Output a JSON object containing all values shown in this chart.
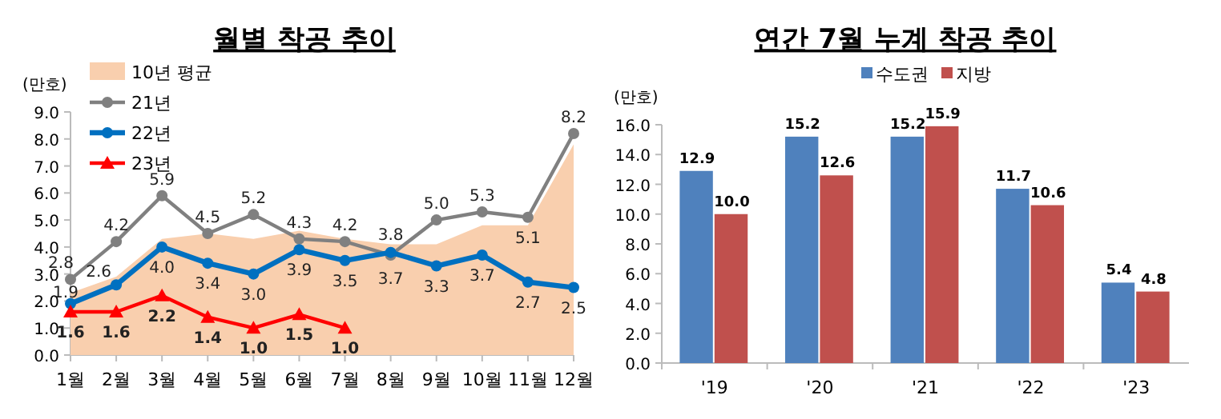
{
  "chart_data": [
    {
      "type": "line",
      "title": "월별 착공 추이",
      "ylabel": "(만호)",
      "categories": [
        "1월",
        "2월",
        "3월",
        "4월",
        "5월",
        "6월",
        "7월",
        "8월",
        "9월",
        "10월",
        "11월",
        "12월"
      ],
      "ylim": [
        0,
        9
      ],
      "yticks": [
        {
          "value": 0,
          "label": "0.0"
        },
        {
          "value": 1,
          "label": "1.0"
        },
        {
          "value": 2,
          "label": "2.0"
        },
        {
          "value": 3,
          "label": "3.0"
        },
        {
          "value": 4,
          "label": "4.0"
        },
        {
          "value": 5,
          "label": "5.0"
        },
        {
          "value": 6,
          "label": "6.0"
        },
        {
          "value": 7,
          "label": "7.0"
        },
        {
          "value": 8,
          "label": "8.0"
        },
        {
          "value": 9,
          "label": "9.0"
        }
      ],
      "legend": "top left",
      "grid": false,
      "series": [
        {
          "name": "10년 평균",
          "type": "area",
          "color": "#f9cfae",
          "values": [
            2.3,
            2.9,
            4.3,
            4.5,
            4.3,
            4.6,
            4.3,
            4.1,
            4.1,
            4.8,
            4.8,
            7.8
          ]
        },
        {
          "name": "21년",
          "color": "#808080",
          "marker": "circle",
          "values": [
            2.8,
            4.2,
            5.9,
            4.5,
            5.2,
            4.3,
            4.2,
            3.7,
            5.0,
            5.3,
            5.1,
            8.2
          ],
          "value_labels": [
            "2.8",
            "4.2",
            "5.9",
            "4.5",
            "5.2",
            "4.3",
            "4.2",
            "3.7",
            "5.0",
            "5.3",
            "5.1",
            "8.2"
          ]
        },
        {
          "name": "22년",
          "color": "#0070c0",
          "marker": "circle",
          "values": [
            1.9,
            2.6,
            4.0,
            3.4,
            3.0,
            3.9,
            3.5,
            3.8,
            3.3,
            3.7,
            2.7,
            2.5
          ],
          "value_labels": [
            "1.9",
            "2.6",
            "4.0",
            "3.4",
            "3.0",
            "3.9",
            "3.5",
            "3.8",
            "3.3",
            "3.7",
            "2.7",
            "2.5"
          ]
        },
        {
          "name": "23년",
          "color": "#ff0000",
          "marker": "triangle",
          "values": [
            1.6,
            1.6,
            2.2,
            1.4,
            1.0,
            1.5,
            1.0,
            null,
            null,
            null,
            null,
            null
          ],
          "value_labels": [
            "1.6",
            "1.6",
            "2.2",
            "1.4",
            "1.0",
            "1.5",
            "1.0",
            null,
            null,
            null,
            null,
            null
          ]
        }
      ]
    },
    {
      "type": "bar",
      "title": "연간 7월 누계 착공 추이",
      "ylabel": "(만호)",
      "categories": [
        "'19",
        "'20",
        "'21",
        "'22",
        "'23"
      ],
      "ylim": [
        0,
        16
      ],
      "yticks": [
        {
          "value": 0,
          "label": "0.0"
        },
        {
          "value": 2,
          "label": "2.0"
        },
        {
          "value": 4,
          "label": "4.0"
        },
        {
          "value": 6,
          "label": "6.0"
        },
        {
          "value": 8,
          "label": "8.0"
        },
        {
          "value": 10,
          "label": "10.0"
        },
        {
          "value": 12,
          "label": "12.0"
        },
        {
          "value": 14,
          "label": "14.0"
        },
        {
          "value": 16,
          "label": "16.0"
        }
      ],
      "legend": "top",
      "grid": false,
      "data_labels": true,
      "series": [
        {
          "name": "수도권",
          "color": "#4f81bd",
          "values": [
            12.9,
            15.2,
            15.2,
            11.7,
            5.4
          ],
          "value_labels": [
            "12.9",
            "15.2",
            "15.2",
            "11.7",
            "5.4"
          ]
        },
        {
          "name": "지방",
          "color": "#c0504d",
          "values": [
            10.0,
            12.6,
            15.9,
            10.6,
            4.8
          ],
          "value_labels": [
            "10.0",
            "12.6",
            "15.9",
            "10.6",
            "4.8"
          ]
        }
      ]
    }
  ]
}
